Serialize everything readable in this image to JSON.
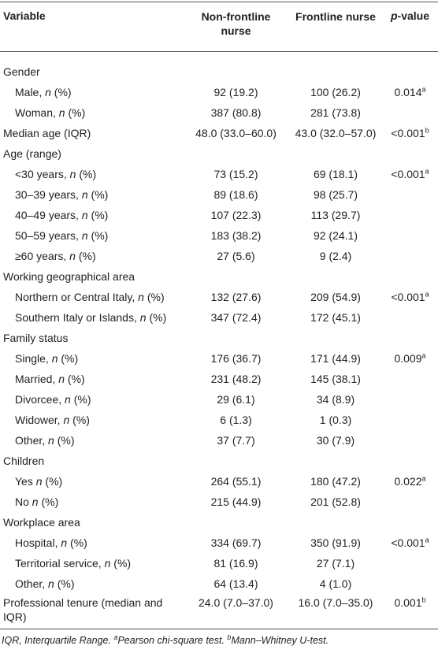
{
  "header": {
    "variable": "Variable",
    "non_frontline_line1": "Non-frontline",
    "non_frontline_line2": "nurse",
    "frontline": "Frontline nurse",
    "pvalue_p": "p",
    "pvalue_rest": "-value"
  },
  "rows": [
    {
      "type": "section",
      "label": "Gender"
    },
    {
      "type": "item",
      "label": "Male, ",
      "n": "n",
      "pct": " (%)",
      "non": "92 (19.2)",
      "front": "100 (26.2)",
      "p": "0.014",
      "sup": "a"
    },
    {
      "type": "item",
      "label": "Woman, ",
      "n": "n",
      "pct": " (%)",
      "non": "387 (80.8)",
      "front": "281 (73.8)",
      "p": "",
      "sup": ""
    },
    {
      "type": "top",
      "label": "Median age (IQR)",
      "non": "48.0 (33.0–60.0)",
      "front": "43.0 (32.0–57.0)",
      "p": "<0.001",
      "sup": "b"
    },
    {
      "type": "section",
      "label": "Age (range)"
    },
    {
      "type": "item",
      "label": "<30 years, ",
      "n": "n",
      "pct": " (%)",
      "non": "73 (15.2)",
      "front": "69 (18.1)",
      "p": "<0.001",
      "sup": "a"
    },
    {
      "type": "item",
      "label": "30–39 years, ",
      "n": "n",
      "pct": " (%)",
      "non": "89 (18.6)",
      "front": "98 (25.7)",
      "p": "",
      "sup": ""
    },
    {
      "type": "item",
      "label": "40–49 years, ",
      "n": "n",
      "pct": " (%)",
      "non": "107 (22.3)",
      "front": "113 (29.7)",
      "p": "",
      "sup": ""
    },
    {
      "type": "item",
      "label": "50–59 years, ",
      "n": "n",
      "pct": " (%)",
      "non": "183 (38.2)",
      "front": "92 (24.1)",
      "p": "",
      "sup": ""
    },
    {
      "type": "item",
      "label": "≥60 years, ",
      "n": "n",
      "pct": " (%)",
      "non": "27 (5.6)",
      "front": "9 (2.4)",
      "p": "",
      "sup": ""
    },
    {
      "type": "section",
      "label": "Working geographical area"
    },
    {
      "type": "item",
      "label": "Northern or Central Italy, ",
      "n": "n",
      "pct": " (%)",
      "non": "132 (27.6)",
      "front": "209 (54.9)",
      "p": "<0.001",
      "sup": "a"
    },
    {
      "type": "item",
      "label": "Southern Italy or Islands, ",
      "n": "n",
      "pct": " (%)",
      "non": "347 (72.4)",
      "front": "172 (45.1)",
      "p": "",
      "sup": ""
    },
    {
      "type": "section",
      "label": "Family status"
    },
    {
      "type": "item",
      "label": "Single, ",
      "n": "n",
      "pct": " (%)",
      "non": "176 (36.7)",
      "front": "171 (44.9)",
      "p": "0.009",
      "sup": "a"
    },
    {
      "type": "item",
      "label": "Married, ",
      "n": "n",
      "pct": " (%)",
      "non": "231 (48.2)",
      "front": "145 (38.1)",
      "p": "",
      "sup": ""
    },
    {
      "type": "item",
      "label": "Divorcee, ",
      "n": "n",
      "pct": " (%)",
      "non": "29 (6.1)",
      "front": "34 (8.9)",
      "p": "",
      "sup": ""
    },
    {
      "type": "item",
      "label": "Widower, ",
      "n": "n",
      "pct": " (%)",
      "non": "6 (1.3)",
      "front": "1 (0.3)",
      "p": "",
      "sup": ""
    },
    {
      "type": "item",
      "label": "Other, ",
      "n": "n",
      "pct": " (%)",
      "non": "37 (7.7)",
      "front": "30 (7.9)",
      "p": "",
      "sup": ""
    },
    {
      "type": "section",
      "label": "Children"
    },
    {
      "type": "item",
      "label": "Yes ",
      "n": "n",
      "pct": " (%)",
      "non": "264 (55.1)",
      "front": "180 (47.2)",
      "p": "0.022",
      "sup": "a"
    },
    {
      "type": "item",
      "label": "No ",
      "n": "n",
      "pct": " (%)",
      "non": "215 (44.9)",
      "front": "201 (52.8)",
      "p": "",
      "sup": ""
    },
    {
      "type": "section",
      "label": "Workplace area"
    },
    {
      "type": "item",
      "label": "Hospital, ",
      "n": "n",
      "pct": " (%)",
      "non": "334 (69.7)",
      "front": "350 (91.9)",
      "p": "<0.001",
      "sup": "a"
    },
    {
      "type": "item",
      "label": "Territorial service, ",
      "n": "n",
      "pct": " (%)",
      "non": "81 (16.9)",
      "front": "27 (7.1)",
      "p": "",
      "sup": ""
    },
    {
      "type": "item",
      "label": "Other, ",
      "n": "n",
      "pct": " (%)",
      "non": "64 (13.4)",
      "front": "4 (1.0)",
      "p": "",
      "sup": ""
    },
    {
      "type": "twoline",
      "label1": "Professional tenure (median and",
      "label2": "IQR)",
      "non": "24.0 (7.0–37.0)",
      "front": "16.0 (7.0–35.0)",
      "p": "0.001",
      "sup": "b"
    }
  ],
  "footnote": {
    "text1": "IQR, Interquartile Range. ",
    "sup_a": "a",
    "text2": "Pearson chi-square test. ",
    "sup_b": "b",
    "text3": "Mann–Whitney U-test."
  }
}
